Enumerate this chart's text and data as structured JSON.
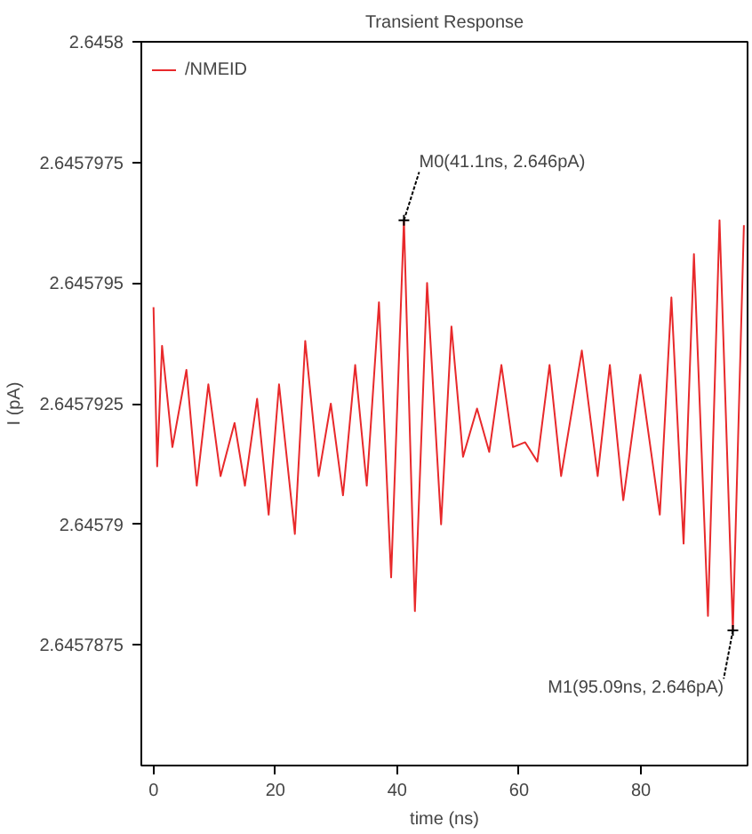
{
  "chart_data": {
    "type": "line",
    "title": "Transient Response",
    "xlabel": "time (ns)",
    "ylabel": "I (pA)",
    "x": [
      0,
      0.6,
      1.4,
      3.1,
      5.4,
      7.1,
      9.0,
      11.0,
      13.3,
      15.0,
      17.0,
      18.9,
      20.6,
      23.2,
      24.9,
      27.1,
      29.1,
      31.1,
      33.1,
      35.0,
      37.0,
      39.0,
      41.1,
      42.9,
      44.9,
      47.2,
      48.9,
      50.8,
      53.1,
      55.1,
      57.1,
      59.0,
      61.0,
      63.0,
      65.0,
      66.9,
      70.3,
      72.9,
      74.9,
      77.1,
      79.9,
      83.1,
      85.0,
      87.0,
      88.7,
      91.0,
      92.9,
      95.09,
      96.9
    ],
    "series": [
      {
        "name": "/NMEID",
        "color": "#e8292b",
        "values": [
          2.6457945,
          2.6457912,
          2.6457937,
          2.6457916,
          2.6457932,
          2.6457908,
          2.6457929,
          2.645791,
          2.6457921,
          2.6457908,
          2.6457926,
          2.6457902,
          2.6457929,
          2.6457898,
          2.6457938,
          2.645791,
          2.6457925,
          2.6457906,
          2.6457933,
          2.6457908,
          2.6457946,
          2.6457889,
          2.6457963,
          2.6457882,
          2.645795,
          2.64579,
          2.6457941,
          2.6457914,
          2.6457924,
          2.6457915,
          2.6457933,
          2.6457916,
          2.6457917,
          2.6457913,
          2.6457933,
          2.645791,
          2.6457936,
          2.645791,
          2.6457933,
          2.6457905,
          2.6457931,
          2.6457902,
          2.6457947,
          2.6457896,
          2.6457956,
          2.6457881,
          2.6457963,
          2.6457878,
          2.6457962
        ]
      }
    ],
    "xlim": [
      -2,
      97.5
    ],
    "xticks": [
      0,
      20,
      40,
      60,
      80
    ],
    "ylim": [
      2.645785,
      2.6458
    ],
    "yticks": [
      2.6457875,
      2.64579,
      2.6457925,
      2.645795,
      2.6457975,
      2.6458
    ],
    "annotations": [
      {
        "text": "M0(41.1ns, 2.646pA)",
        "x": 41.1,
        "y": 2.6457963
      },
      {
        "text": "M1(95.09ns, 2.646pA)",
        "x": 95.09,
        "y": 2.6457878
      }
    ],
    "grid": false,
    "legend": "top left",
    "marker": "none",
    "line_style": "solid"
  }
}
